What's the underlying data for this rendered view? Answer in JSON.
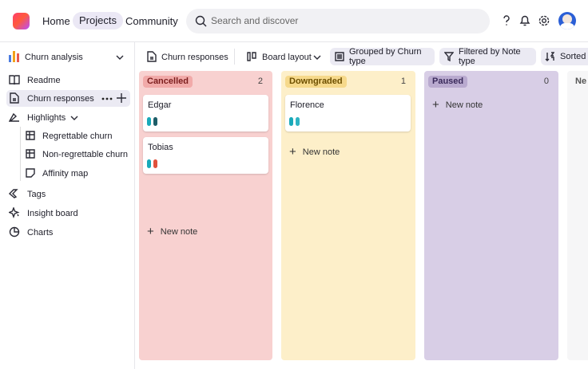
{
  "nav": {
    "links": [
      "Home",
      "Projects",
      "Community"
    ],
    "search_placeholder": "Search and discover"
  },
  "sidebar": {
    "project": "Churn analysis",
    "items": [
      "Readme",
      "Churn responses",
      "Highlights"
    ],
    "sub_items": [
      "Regrettable churn",
      "Non-regrettable churn",
      "Affinity map"
    ],
    "more_items": [
      "Tags",
      "Insight board",
      "Charts"
    ]
  },
  "toolbar": {
    "view": "Churn responses",
    "layout": "Board layout",
    "group": "Grouped by Churn type",
    "filter": "Filtered by Note type",
    "sort": "Sorted b"
  },
  "board": {
    "columns": [
      {
        "name": "Cancelled",
        "count": 2,
        "cards": [
          "Edgar",
          "Tobias"
        ],
        "add_label": "New note"
      },
      {
        "name": "Downgraded",
        "count": 1,
        "cards": [
          "Florence"
        ],
        "add_label": "New note"
      },
      {
        "name": "Paused",
        "count": 0,
        "cards": [],
        "add_label": "New note"
      },
      {
        "name": "Ne"
      }
    ]
  }
}
